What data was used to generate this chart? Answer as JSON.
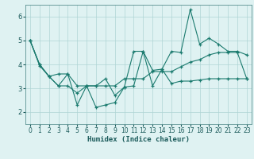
{
  "xlabel": "Humidex (Indice chaleur)",
  "x": [
    0,
    1,
    2,
    3,
    4,
    5,
    6,
    7,
    8,
    9,
    10,
    11,
    12,
    13,
    14,
    15,
    16,
    17,
    18,
    19,
    20,
    21,
    22,
    23
  ],
  "line1": [
    5.0,
    4.0,
    3.5,
    3.1,
    3.6,
    2.3,
    3.1,
    2.2,
    2.3,
    2.4,
    3.05,
    3.1,
    4.55,
    3.75,
    3.8,
    4.55,
    4.5,
    6.3,
    4.85,
    5.1,
    4.85,
    4.55,
    4.55,
    4.4
  ],
  "line2": [
    5.0,
    4.0,
    3.5,
    3.6,
    3.6,
    3.1,
    3.1,
    3.1,
    3.4,
    2.7,
    3.05,
    4.55,
    4.55,
    3.1,
    3.8,
    3.2,
    3.3,
    3.3,
    3.35,
    3.4,
    3.4,
    3.4,
    3.4,
    3.4
  ],
  "line3": [
    5.0,
    3.95,
    3.5,
    3.1,
    3.1,
    2.8,
    3.1,
    3.1,
    3.1,
    3.1,
    3.4,
    3.4,
    3.4,
    3.7,
    3.7,
    3.7,
    3.9,
    4.1,
    4.2,
    4.4,
    4.5,
    4.5,
    4.5,
    3.4
  ],
  "bg_color": "#dff2f2",
  "line_color": "#1a7a6e",
  "grid_color": "#afd4d4",
  "ylim": [
    1.5,
    6.5
  ],
  "yticks": [
    2,
    3,
    4,
    5,
    6
  ],
  "xlim": [
    -0.5,
    23.5
  ]
}
